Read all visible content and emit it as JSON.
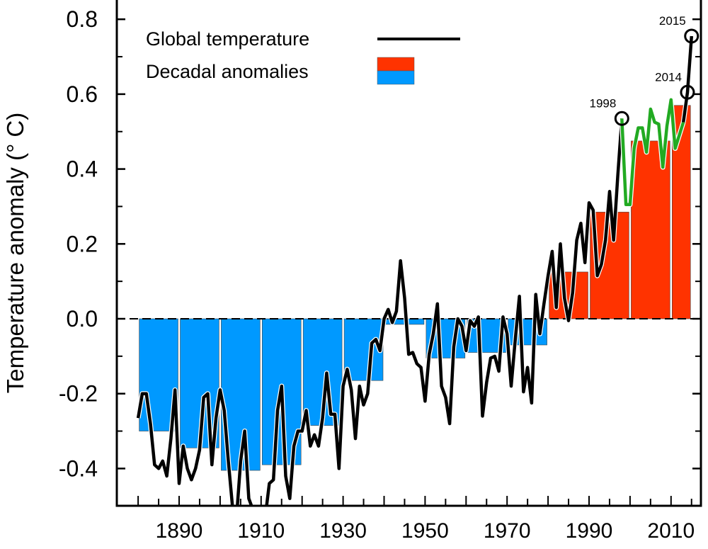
{
  "chart_data": {
    "type": "bar+line",
    "title": "",
    "xlabel": "",
    "ylabel": "Temperature anomaly (° C)",
    "xlim": [
      1875,
      2017
    ],
    "ylim": [
      -0.5,
      0.85
    ],
    "x_ticks": [
      1890,
      1910,
      1930,
      1950,
      1970,
      1990,
      2010
    ],
    "x_tick_labels": [
      "1890",
      "1910",
      "1930",
      "1950",
      "1970",
      "1990",
      "2010"
    ],
    "y_ticks": [
      -0.4,
      -0.2,
      0.0,
      0.2,
      0.4,
      0.6,
      0.8
    ],
    "y_tick_labels": [
      "-0.4",
      "-0.2",
      "0.0",
      "0.2",
      "0.4",
      "0.6",
      "0.8"
    ],
    "grid": false,
    "legend_position": "top-left",
    "legend": [
      {
        "label": "Global temperature",
        "color": "#000000",
        "kind": "line"
      },
      {
        "label": "Decadal anomalies",
        "colors": [
          "#ff3300",
          "#0099ff"
        ],
        "kind": "bar"
      }
    ],
    "colors": {
      "positive": "#ff3300",
      "negative": "#0099ff",
      "line": "#000000",
      "highlight": "#22aa22"
    },
    "decadal": {
      "starts": [
        1880,
        1890,
        1900,
        1910,
        1920,
        1930,
        1940,
        1950,
        1960,
        1970,
        1980,
        1990,
        2000,
        2010
      ],
      "ends": [
        1890,
        1900,
        1910,
        1920,
        1930,
        1940,
        1950,
        1960,
        1970,
        1980,
        1990,
        2000,
        2010,
        2015
      ],
      "values": [
        -0.3,
        -0.345,
        -0.405,
        -0.39,
        -0.285,
        -0.165,
        -0.015,
        -0.105,
        -0.09,
        -0.07,
        0.125,
        0.285,
        0.475,
        0.57
      ]
    },
    "annual": {
      "start_year": 1880,
      "values": [
        -0.265,
        -0.2,
        -0.2,
        -0.28,
        -0.39,
        -0.4,
        -0.38,
        -0.42,
        -0.32,
        -0.19,
        -0.44,
        -0.34,
        -0.4,
        -0.43,
        -0.4,
        -0.35,
        -0.21,
        -0.2,
        -0.39,
        -0.265,
        -0.19,
        -0.245,
        -0.38,
        -0.5,
        -0.53,
        -0.38,
        -0.3,
        -0.48,
        -0.51,
        -0.53,
        -0.54,
        -0.53,
        -0.44,
        -0.43,
        -0.245,
        -0.18,
        -0.42,
        -0.48,
        -0.34,
        -0.3,
        -0.3,
        -0.245,
        -0.34,
        -0.31,
        -0.34,
        -0.265,
        -0.145,
        -0.255,
        -0.255,
        -0.4,
        -0.18,
        -0.135,
        -0.19,
        -0.32,
        -0.18,
        -0.23,
        -0.2,
        -0.065,
        -0.055,
        -0.085,
        0.0,
        0.025,
        -0.01,
        0.02,
        0.155,
        0.055,
        -0.095,
        -0.09,
        -0.12,
        -0.13,
        -0.22,
        -0.095,
        -0.04,
        0.04,
        -0.18,
        -0.21,
        -0.28,
        -0.075,
        0.0,
        -0.02,
        -0.085,
        -0.005,
        -0.02,
        0.005,
        -0.26,
        -0.17,
        -0.105,
        -0.1,
        -0.14,
        0.005,
        -0.04,
        -0.18,
        -0.055,
        0.06,
        -0.195,
        -0.13,
        -0.225,
        0.065,
        -0.04,
        0.04,
        0.115,
        0.18,
        0.03,
        0.2,
        0.055,
        -0.005,
        0.07,
        0.21,
        0.255,
        0.15,
        0.31,
        0.29,
        0.115,
        0.145,
        0.21,
        0.34,
        0.21,
        0.38,
        0.535,
        0.305,
        0.305,
        0.455,
        0.51,
        0.51,
        0.445,
        0.56,
        0.525,
        0.52,
        0.405,
        0.515,
        0.585,
        0.455,
        0.49,
        0.525,
        0.605,
        0.755
      ]
    },
    "highlight_range": [
      1998,
      2013
    ],
    "annotations": [
      {
        "year": 1998,
        "label": "1998"
      },
      {
        "year": 2014,
        "label": "2014"
      },
      {
        "year": 2015,
        "label": "2015"
      }
    ]
  }
}
